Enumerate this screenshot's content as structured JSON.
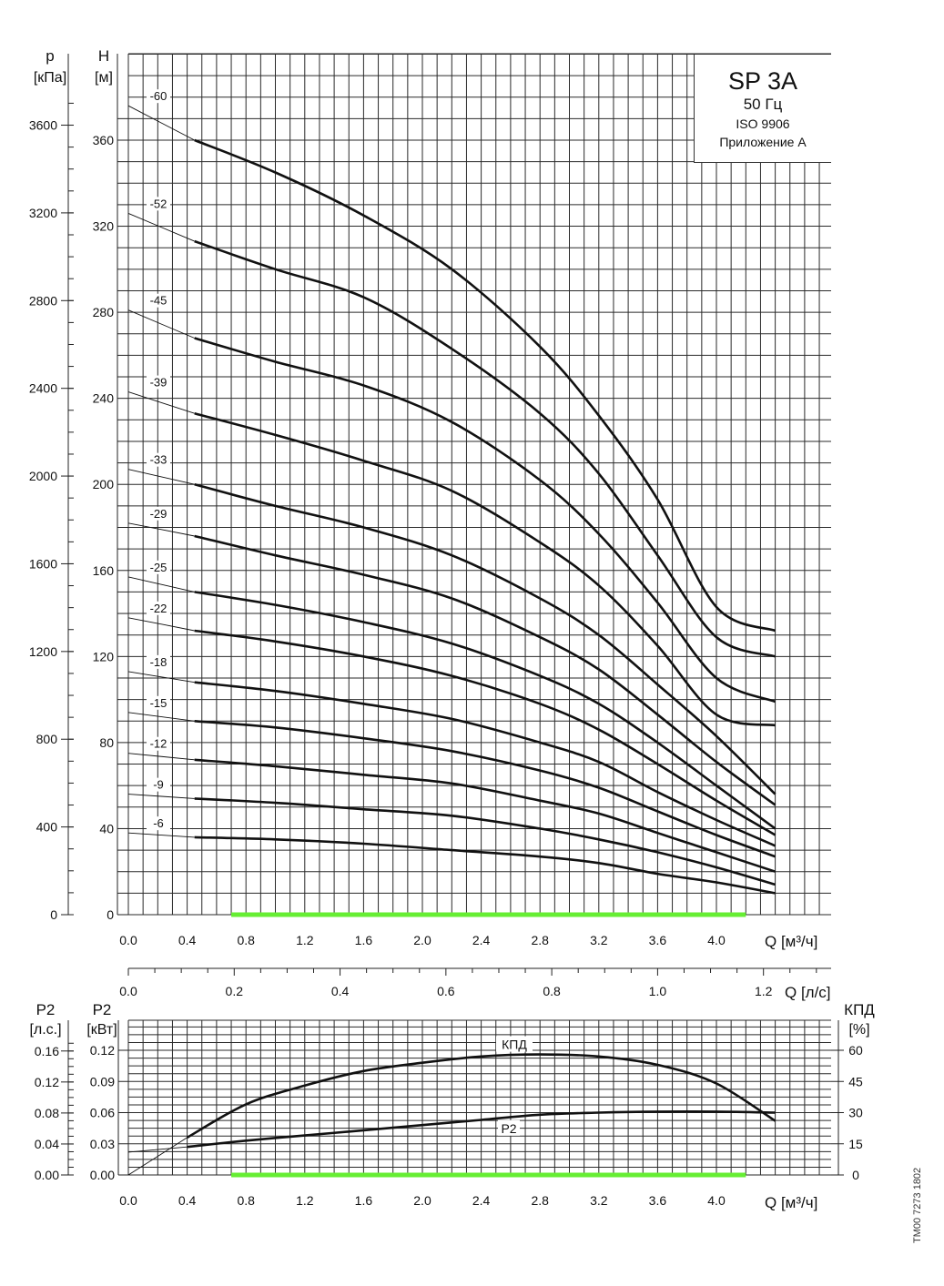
{
  "chart_data": [
    {
      "type": "line",
      "model": "SP 3A",
      "frequency": "50 Гц",
      "standard": "ISO 9906",
      "annex": "Приложение A",
      "left_axis_label": "p",
      "left_axis_unit": "[кПа]",
      "yaxis_label": "H",
      "yaxis_unit": "[м]",
      "xlabel": "Q [м³/ч]",
      "xlim": [
        0.0,
        4.8
      ],
      "ylim": [
        0,
        380
      ],
      "xticks": [
        "0.0",
        "0.4",
        "0.8",
        "1.2",
        "1.6",
        "2.0",
        "2.4",
        "2.8",
        "3.2",
        "3.6",
        "4.0"
      ],
      "yticks": [
        "0",
        "40",
        "80",
        "120",
        "160",
        "200",
        "240",
        "280",
        "320",
        "360"
      ],
      "pressure_ticks": [
        "0",
        "400",
        "800",
        "1200",
        "1600",
        "2000",
        "2400",
        "2800",
        "3200",
        "3600"
      ],
      "recommended_range": [
        0.7,
        4.2
      ],
      "recommended_color": "#66ee33",
      "grid": true,
      "series": [
        {
          "name": "-60",
          "x": [
            0.0,
            0.45,
            1.0,
            1.6,
            2.2,
            2.8,
            3.2,
            3.6,
            4.0,
            4.4
          ],
          "y": [
            376,
            360,
            345,
            325,
            300,
            264,
            232,
            193,
            143,
            132
          ]
        },
        {
          "name": "-52",
          "x": [
            0.0,
            0.45,
            1.0,
            1.6,
            2.2,
            2.8,
            3.2,
            3.6,
            4.0,
            4.4
          ],
          "y": [
            326,
            313,
            300,
            287,
            263,
            233,
            205,
            167,
            129,
            120
          ]
        },
        {
          "name": "-45",
          "x": [
            0.0,
            0.45,
            1.0,
            1.6,
            2.2,
            2.8,
            3.2,
            3.6,
            4.0,
            4.4
          ],
          "y": [
            281,
            268,
            257,
            246,
            229,
            202,
            177,
            145,
            110,
            99
          ]
        },
        {
          "name": "-39",
          "x": [
            0.0,
            0.45,
            1.0,
            1.6,
            2.2,
            2.8,
            3.2,
            3.6,
            4.0,
            4.4
          ],
          "y": [
            243,
            233,
            223,
            211,
            197,
            173,
            153,
            125,
            93,
            88
          ]
        },
        {
          "name": "-33",
          "x": [
            0.0,
            0.45,
            1.0,
            1.6,
            2.2,
            2.8,
            3.2,
            3.6,
            4.0,
            4.4
          ],
          "y": [
            207,
            200,
            190,
            180,
            167,
            147,
            130,
            107,
            83,
            56
          ]
        },
        {
          "name": "-29",
          "x": [
            0.0,
            0.45,
            1.0,
            1.6,
            2.2,
            2.8,
            3.2,
            3.6,
            4.0,
            4.4
          ],
          "y": [
            182,
            176,
            167,
            158,
            147,
            129,
            114,
            93,
            71,
            51
          ]
        },
        {
          "name": "-25",
          "x": [
            0.0,
            0.45,
            1.0,
            1.6,
            2.2,
            2.8,
            3.2,
            3.6,
            4.0,
            4.4
          ],
          "y": [
            157,
            150,
            144,
            136,
            126,
            111,
            98,
            80,
            60,
            40
          ]
        },
        {
          "name": "-22",
          "x": [
            0.0,
            0.45,
            1.0,
            1.6,
            2.2,
            2.8,
            3.2,
            3.6,
            4.0,
            4.4
          ],
          "y": [
            138,
            132,
            127,
            120,
            111,
            98,
            86,
            70,
            53,
            37
          ]
        },
        {
          "name": "-18",
          "x": [
            0.0,
            0.45,
            1.0,
            1.6,
            2.2,
            2.8,
            3.2,
            3.6,
            4.0,
            4.4
          ],
          "y": [
            113,
            108,
            104,
            98,
            91,
            80,
            71,
            57,
            44,
            32
          ]
        },
        {
          "name": "-15",
          "x": [
            0.0,
            0.45,
            1.0,
            1.6,
            2.2,
            2.8,
            3.2,
            3.6,
            4.0,
            4.4
          ],
          "y": [
            94,
            90,
            87,
            82,
            76,
            67,
            59,
            48,
            37,
            27
          ]
        },
        {
          "name": "-12",
          "x": [
            0.0,
            0.45,
            1.0,
            1.6,
            2.2,
            2.8,
            3.2,
            3.6,
            4.0,
            4.4
          ],
          "y": [
            75,
            72,
            69,
            65,
            61,
            53,
            47,
            38,
            29,
            20
          ]
        },
        {
          "name": "-9",
          "x": [
            0.0,
            0.45,
            1.0,
            1.6,
            2.2,
            2.8,
            3.2,
            3.6,
            4.0,
            4.4
          ],
          "y": [
            56,
            54,
            52,
            49,
            46,
            40,
            35,
            29,
            22,
            14
          ]
        },
        {
          "name": "-6",
          "x": [
            0.0,
            0.45,
            1.0,
            1.6,
            2.2,
            2.8,
            3.2,
            3.6,
            4.0,
            4.4
          ],
          "y": [
            38,
            36,
            35,
            33,
            30,
            27,
            24,
            19,
            15,
            10
          ]
        }
      ]
    },
    {
      "type": "line",
      "xlabel": "Q [л/с]",
      "xlim": [
        0.0,
        1.3333
      ],
      "xticks": [
        "0.0",
        "0.2",
        "0.4",
        "0.6",
        "0.8",
        "1.0",
        "1.2"
      ],
      "xtick_values": [
        0.0,
        0.2,
        0.4,
        0.6,
        0.8,
        1.0,
        1.2
      ]
    },
    {
      "type": "line",
      "left_outer_label": "P2",
      "left_outer_unit": "[л.с.]",
      "left_inner_label": "P2",
      "left_inner_unit": "[кВт]",
      "right_label": "КПД",
      "right_unit": "[%]",
      "xlabel": "Q [м³/ч]",
      "xlim": [
        0.0,
        4.8
      ],
      "xticks": [
        "0.0",
        "0.4",
        "0.8",
        "1.2",
        "1.6",
        "2.0",
        "2.4",
        "2.8",
        "3.2",
        "3.6",
        "4.0"
      ],
      "p2_hp_ticks": [
        "0.00",
        "0.04",
        "0.08",
        "0.12",
        "0.16"
      ],
      "p2_kw_ticks": [
        "0.00",
        "0.03",
        "0.06",
        "0.09",
        "0.12"
      ],
      "eta_ticks": [
        "0",
        "15",
        "30",
        "45",
        "60"
      ],
      "ylim_kw": [
        0,
        0.135
      ],
      "ylim_eta": [
        0,
        67.5
      ],
      "recommended_range": [
        0.7,
        4.2
      ],
      "series": [
        {
          "name": "КПД",
          "unit": "%",
          "x": [
            0.0,
            0.4,
            0.8,
            1.2,
            1.6,
            2.0,
            2.4,
            2.8,
            3.2,
            3.6,
            4.0,
            4.4
          ],
          "y": [
            0,
            18,
            34,
            43,
            50,
            54,
            57,
            58,
            57,
            53,
            44,
            26
          ]
        },
        {
          "name": "P2",
          "unit": "кВт",
          "x": [
            0.0,
            0.4,
            0.8,
            1.2,
            1.6,
            2.0,
            2.4,
            2.8,
            3.2,
            3.6,
            4.0,
            4.4
          ],
          "y": [
            0.022,
            0.027,
            0.033,
            0.038,
            0.043,
            0.048,
            0.053,
            0.058,
            0.06,
            0.061,
            0.061,
            0.06
          ]
        }
      ]
    }
  ],
  "footer": {
    "code": "TM00 7273 1802"
  }
}
